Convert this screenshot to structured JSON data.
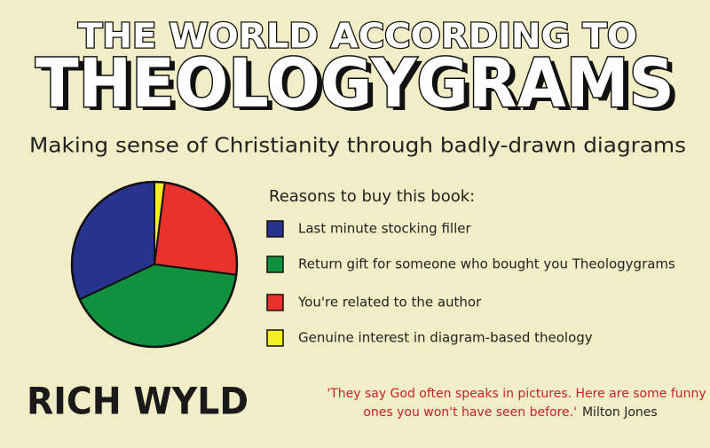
{
  "cover": {
    "kicker": "THE WORLD ACCORDING TO",
    "title": "THEOLOGYGRAMS",
    "subtitle": "Making sense of Christianity through badly-drawn diagrams",
    "author": "RICH WYLD",
    "quote_lines": [
      "'They say God often speaks in pictures. Here are some funny",
      "ones you won't have seen before.'"
    ],
    "quote_author": "Milton Jones"
  },
  "chart_data": {
    "type": "pie",
    "legend_title": "Reasons to buy this book:",
    "categories": [
      "Last minute stocking filler",
      "Return gift for someone who bought you Theologygrams",
      "You're related to the author",
      "Genuine interest in diagram-based theology"
    ],
    "values": [
      32,
      41,
      25,
      2
    ],
    "colors": [
      "#27338c",
      "#11913e",
      "#e8322b",
      "#f4ee22"
    ]
  }
}
